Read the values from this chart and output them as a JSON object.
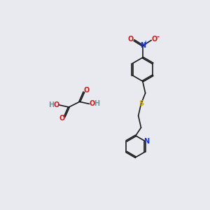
{
  "background_color": "#e8eaf0",
  "fig_size": [
    3.0,
    3.0
  ],
  "dpi": 100,
  "bond_color": "#1a1a1a",
  "bond_lw": 1.2,
  "atom_colors": {
    "C": "#1a1a1a",
    "N_blue": "#1a35cc",
    "O": "#cc1a1a",
    "S": "#ccaa00",
    "H": "#6a9a9a"
  },
  "font_size": 7.0,
  "font_size_super": 5.5,
  "font_weight": "bold"
}
